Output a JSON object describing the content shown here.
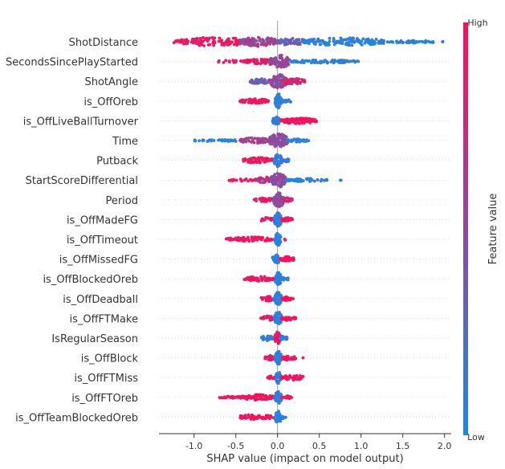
{
  "chart_data": {
    "type": "scatter",
    "subtype": "shap-beeswarm-summary",
    "xlabel": "SHAP value (impact on model output)",
    "xlim": [
      -1.42,
      2.08
    ],
    "xticks": [
      "-1.0",
      "-0.5",
      "0.0",
      "0.5",
      "1.0",
      "1.5",
      "2.0"
    ],
    "xtick_values": [
      -1.0,
      -0.5,
      0.0,
      0.5,
      1.0,
      1.5,
      2.0
    ],
    "colorbar": {
      "title": "Feature value",
      "high_label": "High",
      "low_label": "Low",
      "low_color": "#1e88e5",
      "high_color": "#ff0d57"
    },
    "grid": "horizontal dashed per feature",
    "features": [
      {
        "name": "ShotDistance",
        "clusters": [
          {
            "x0": -1.3,
            "x1": -0.95,
            "w": 0.2,
            "feat": 0.9,
            "n": 20
          },
          {
            "x0": -1.2,
            "x1": -0.3,
            "w": 0.55,
            "feat": 0.9,
            "n": 130
          },
          {
            "x0": -0.45,
            "x1": 0.0,
            "w": 0.6,
            "feat": 0.55,
            "n": 90
          },
          {
            "x0": 0.0,
            "x1": 0.35,
            "w": 0.45,
            "feat": 0.35,
            "n": 60
          },
          {
            "x0": 0.3,
            "x1": 1.3,
            "w": 0.5,
            "feat": 0.05,
            "n": 140
          },
          {
            "x0": 1.3,
            "x1": 1.98,
            "w": 0.15,
            "feat": 0.05,
            "n": 50
          }
        ]
      },
      {
        "name": "SecondsSincePlayStarted",
        "clusters": [
          {
            "x0": -0.4,
            "x1": -0.05,
            "w": 0.3,
            "feat": 0.9,
            "n": 70
          },
          {
            "x0": -0.75,
            "x1": -0.4,
            "w": 0.15,
            "feat": 0.9,
            "n": 20
          },
          {
            "x0": -0.1,
            "x1": 0.15,
            "w": 0.8,
            "feat": 0.55,
            "n": 90
          },
          {
            "x0": 0.15,
            "x1": 0.97,
            "w": 0.2,
            "feat": 0.05,
            "n": 90
          }
        ]
      },
      {
        "name": "ShotAngle",
        "clusters": [
          {
            "x0": -0.33,
            "x1": -0.1,
            "w": 0.35,
            "feat": 0.35,
            "n": 40
          },
          {
            "x0": -0.1,
            "x1": 0.12,
            "w": 0.85,
            "feat": 0.5,
            "n": 110
          },
          {
            "x0": 0.05,
            "x1": 0.33,
            "w": 0.35,
            "feat": 0.8,
            "n": 50
          }
        ]
      },
      {
        "name": "is_OffOreb",
        "clusters": [
          {
            "x0": -0.45,
            "x1": -0.1,
            "w": 0.3,
            "feat": 0.95,
            "n": 60
          },
          {
            "x0": -0.03,
            "x1": 0.05,
            "w": 0.9,
            "feat": 0.05,
            "n": 60
          },
          {
            "x0": 0.05,
            "x1": 0.17,
            "w": 0.2,
            "feat": 0.05,
            "n": 15
          }
        ]
      },
      {
        "name": "is_OffLiveBallTurnover",
        "clusters": [
          {
            "x0": -0.06,
            "x1": 0.03,
            "w": 0.5,
            "feat": 0.05,
            "n": 50
          },
          {
            "x0": 0.03,
            "x1": 0.47,
            "w": 0.35,
            "feat": 0.95,
            "n": 90
          }
        ]
      },
      {
        "name": "Time",
        "clusters": [
          {
            "x0": -1.02,
            "x1": -0.4,
            "w": 0.15,
            "feat": 0.05,
            "n": 40
          },
          {
            "x0": -0.45,
            "x1": -0.1,
            "w": 0.35,
            "feat": 0.6,
            "n": 50
          },
          {
            "x0": -0.1,
            "x1": 0.12,
            "w": 0.9,
            "feat": 0.5,
            "n": 110
          },
          {
            "x0": 0.12,
            "x1": 0.38,
            "w": 0.2,
            "feat": 0.05,
            "n": 40
          }
        ]
      },
      {
        "name": "Putback",
        "clusters": [
          {
            "x0": -0.42,
            "x1": -0.05,
            "w": 0.35,
            "feat": 0.95,
            "n": 70
          },
          {
            "x0": -0.04,
            "x1": 0.05,
            "w": 0.85,
            "feat": 0.05,
            "n": 60
          },
          {
            "x0": 0.05,
            "x1": 0.15,
            "w": 0.2,
            "feat": 0.1,
            "n": 15
          }
        ]
      },
      {
        "name": "StartScoreDifferential",
        "clusters": [
          {
            "x0": -0.6,
            "x1": -0.2,
            "w": 0.15,
            "feat": 0.95,
            "n": 25
          },
          {
            "x0": -0.25,
            "x1": -0.05,
            "w": 0.4,
            "feat": 0.7,
            "n": 40
          },
          {
            "x0": -0.08,
            "x1": 0.1,
            "w": 0.9,
            "feat": 0.5,
            "n": 110
          },
          {
            "x0": 0.1,
            "x1": 0.6,
            "w": 0.2,
            "feat": 0.05,
            "n": 60
          },
          {
            "x0": 0.75,
            "x1": 0.78,
            "w": 0.05,
            "feat": 0.05,
            "n": 2
          }
        ]
      },
      {
        "name": "Period",
        "clusters": [
          {
            "x0": -0.28,
            "x1": -0.03,
            "w": 0.25,
            "feat": 0.9,
            "n": 40
          },
          {
            "x0": -0.05,
            "x1": 0.08,
            "w": 0.9,
            "feat": 0.5,
            "n": 80
          },
          {
            "x0": 0.05,
            "x1": 0.18,
            "w": 0.25,
            "feat": 0.75,
            "n": 30
          }
        ]
      },
      {
        "name": "is_OffMadeFG",
        "clusters": [
          {
            "x0": -0.22,
            "x1": -0.03,
            "w": 0.25,
            "feat": 0.9,
            "n": 30
          },
          {
            "x0": -0.04,
            "x1": 0.05,
            "w": 0.9,
            "feat": 0.05,
            "n": 60
          },
          {
            "x0": 0.05,
            "x1": 0.18,
            "w": 0.25,
            "feat": 0.95,
            "n": 30
          }
        ]
      },
      {
        "name": "is_OffTimeout",
        "clusters": [
          {
            "x0": -0.62,
            "x1": -0.05,
            "w": 0.3,
            "feat": 0.95,
            "n": 90
          },
          {
            "x0": -0.03,
            "x1": 0.04,
            "w": 0.8,
            "feat": 0.05,
            "n": 50
          },
          {
            "x0": 0.08,
            "x1": 0.11,
            "w": 0.1,
            "feat": 0.95,
            "n": 2
          }
        ]
      },
      {
        "name": "is_OffMissedFG",
        "clusters": [
          {
            "x0": -0.06,
            "x1": 0.03,
            "w": 0.6,
            "feat": 0.05,
            "n": 50
          },
          {
            "x0": 0.03,
            "x1": 0.2,
            "w": 0.3,
            "feat": 0.95,
            "n": 35
          }
        ]
      },
      {
        "name": "is_OffBlockedOreb",
        "clusters": [
          {
            "x0": -0.4,
            "x1": -0.04,
            "w": 0.3,
            "feat": 0.95,
            "n": 60
          },
          {
            "x0": -0.03,
            "x1": 0.05,
            "w": 0.8,
            "feat": 0.05,
            "n": 50
          },
          {
            "x0": 0.05,
            "x1": 0.15,
            "w": 0.2,
            "feat": 0.05,
            "n": 15
          }
        ]
      },
      {
        "name": "is_OffDeadball",
        "clusters": [
          {
            "x0": -0.2,
            "x1": -0.04,
            "w": 0.3,
            "feat": 0.9,
            "n": 30
          },
          {
            "x0": -0.04,
            "x1": 0.05,
            "w": 0.8,
            "feat": 0.05,
            "n": 50
          },
          {
            "x0": 0.05,
            "x1": 0.17,
            "w": 0.25,
            "feat": 0.95,
            "n": 25
          },
          {
            "x0": 0.18,
            "x1": 0.19,
            "w": 0.05,
            "feat": 0.95,
            "n": 1
          }
        ]
      },
      {
        "name": "is_OffFTMake",
        "clusters": [
          {
            "x0": -0.2,
            "x1": -0.04,
            "w": 0.3,
            "feat": 0.9,
            "n": 30
          },
          {
            "x0": -0.04,
            "x1": 0.05,
            "w": 0.8,
            "feat": 0.05,
            "n": 50
          },
          {
            "x0": 0.05,
            "x1": 0.22,
            "w": 0.3,
            "feat": 0.95,
            "n": 30
          }
        ]
      },
      {
        "name": "IsRegularSeason",
        "clusters": [
          {
            "x0": -0.2,
            "x1": -0.03,
            "w": 0.3,
            "feat": 0.05,
            "n": 35
          },
          {
            "x0": -0.03,
            "x1": 0.03,
            "w": 0.8,
            "feat": 0.95,
            "n": 40
          },
          {
            "x0": 0.03,
            "x1": 0.12,
            "w": 0.3,
            "feat": 0.1,
            "n": 15
          }
        ]
      },
      {
        "name": "is_OffBlock",
        "clusters": [
          {
            "x0": -0.15,
            "x1": -0.03,
            "w": 0.3,
            "feat": 0.9,
            "n": 25
          },
          {
            "x0": -0.03,
            "x1": 0.05,
            "w": 0.8,
            "feat": 0.05,
            "n": 50
          },
          {
            "x0": 0.05,
            "x1": 0.22,
            "w": 0.3,
            "feat": 0.95,
            "n": 35
          },
          {
            "x0": 0.3,
            "x1": 0.32,
            "w": 0.05,
            "feat": 0.95,
            "n": 1
          }
        ]
      },
      {
        "name": "is_OffFTMiss",
        "clusters": [
          {
            "x0": -0.12,
            "x1": -0.02,
            "w": 0.2,
            "feat": 0.9,
            "n": 20
          },
          {
            "x0": -0.02,
            "x1": 0.04,
            "w": 0.8,
            "feat": 0.05,
            "n": 40
          },
          {
            "x0": 0.04,
            "x1": 0.32,
            "w": 0.3,
            "feat": 0.95,
            "n": 45
          }
        ]
      },
      {
        "name": "is_OffFTOreb",
        "clusters": [
          {
            "x0": -0.7,
            "x1": -0.4,
            "w": 0.15,
            "feat": 0.9,
            "n": 25
          },
          {
            "x0": -0.45,
            "x1": -0.04,
            "w": 0.35,
            "feat": 0.95,
            "n": 80
          },
          {
            "x0": -0.03,
            "x1": 0.05,
            "w": 0.8,
            "feat": 0.05,
            "n": 50
          },
          {
            "x0": 0.05,
            "x1": 0.17,
            "w": 0.2,
            "feat": 0.95,
            "n": 15
          }
        ]
      },
      {
        "name": "is_OffTeamBlockedOreb",
        "clusters": [
          {
            "x0": -0.48,
            "x1": -0.05,
            "w": 0.3,
            "feat": 0.95,
            "n": 70
          },
          {
            "x0": -0.03,
            "x1": 0.05,
            "w": 0.8,
            "feat": 0.05,
            "n": 40
          },
          {
            "x0": 0.05,
            "x1": 0.1,
            "w": 0.2,
            "feat": 0.05,
            "n": 10
          }
        ]
      }
    ]
  }
}
